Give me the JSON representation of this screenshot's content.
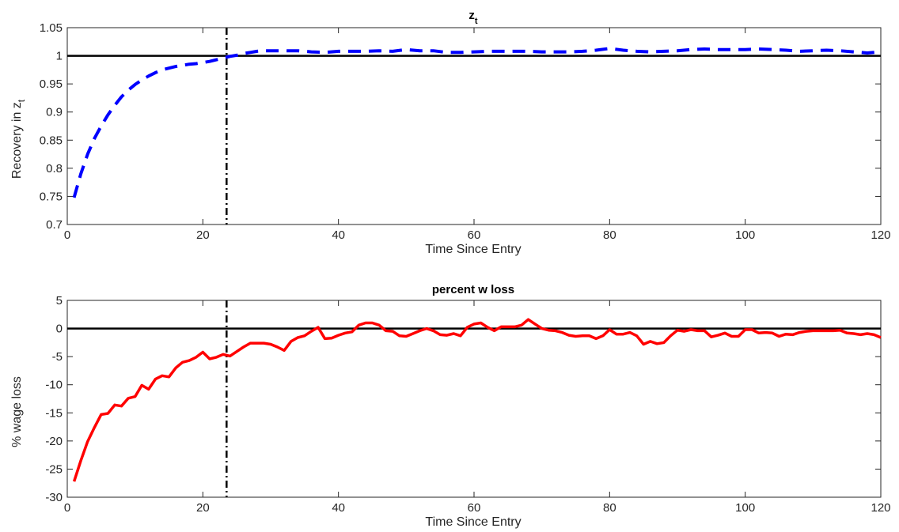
{
  "chart_data": [
    {
      "type": "line",
      "title": "z",
      "title_subscript": "t",
      "xlabel": "Time Since Entry",
      "ylabel": "Recovery in z",
      "ylabel_subscript": "t",
      "xlim": [
        0,
        120
      ],
      "ylim": [
        0.7,
        1.05
      ],
      "xticks": [
        0,
        20,
        40,
        60,
        80,
        100,
        120
      ],
      "yticks": [
        0.7,
        0.75,
        0.8,
        0.85,
        0.9,
        0.95,
        1,
        1.05
      ],
      "ytick_labels": [
        "0.7",
        "0.75",
        "0.8",
        "0.85",
        "0.9",
        "0.95",
        "1",
        "1.05"
      ],
      "grid": false,
      "reference_line_y": 1,
      "vertical_marker_x": 23.5,
      "series": [
        {
          "color": "#0000ff",
          "style": "dashed",
          "x": [
            1,
            2,
            3,
            4,
            5,
            6,
            7,
            8,
            9,
            10,
            11,
            12,
            13,
            14,
            15,
            16,
            17,
            18,
            19,
            20,
            21,
            22,
            23,
            24,
            25,
            26,
            27,
            28,
            29,
            30,
            32,
            34,
            36,
            38,
            40,
            42,
            44,
            46,
            48,
            50,
            52,
            54,
            56,
            58,
            60,
            62,
            64,
            66,
            68,
            70,
            72,
            74,
            76,
            78,
            80,
            82,
            84,
            86,
            88,
            90,
            92,
            94,
            96,
            98,
            100,
            102,
            104,
            106,
            108,
            110,
            112,
            114,
            116,
            118,
            120
          ],
          "values": [
            0.748,
            0.79,
            0.825,
            0.853,
            0.875,
            0.895,
            0.912,
            0.927,
            0.939,
            0.949,
            0.957,
            0.964,
            0.97,
            0.975,
            0.978,
            0.981,
            0.983,
            0.985,
            0.986,
            0.988,
            0.99,
            0.993,
            0.996,
            0.999,
            1.001,
            1.004,
            1.006,
            1.008,
            1.009,
            1.009,
            1.009,
            1.009,
            1.007,
            1.006,
            1.008,
            1.008,
            1.008,
            1.009,
            1.008,
            1.011,
            1.009,
            1.009,
            1.006,
            1.006,
            1.007,
            1.008,
            1.008,
            1.008,
            1.008,
            1.007,
            1.007,
            1.007,
            1.008,
            1.01,
            1.013,
            1.01,
            1.008,
            1.007,
            1.008,
            1.009,
            1.011,
            1.012,
            1.011,
            1.011,
            1.011,
            1.012,
            1.011,
            1.01,
            1.008,
            1.009,
            1.01,
            1.009,
            1.007,
            1.005,
            1.007
          ]
        }
      ]
    },
    {
      "type": "line",
      "title": "percent w loss",
      "xlabel": "Time Since Entry",
      "ylabel": "% wage loss",
      "xlim": [
        0,
        120
      ],
      "ylim": [
        -30,
        5
      ],
      "xticks": [
        0,
        20,
        40,
        60,
        80,
        100,
        120
      ],
      "yticks": [
        -30,
        -25,
        -20,
        -15,
        -10,
        -5,
        0,
        5
      ],
      "ytick_labels": [
        "-30",
        "-25",
        "-20",
        "-15",
        "-10",
        "-5",
        "0",
        "5"
      ],
      "grid": false,
      "reference_line_y": 0,
      "vertical_marker_x": 23.5,
      "series": [
        {
          "color": "#ff0000",
          "style": "solid",
          "x": [
            1,
            2,
            3,
            4,
            5,
            6,
            7,
            8,
            9,
            10,
            11,
            12,
            13,
            14,
            15,
            16,
            17,
            18,
            19,
            20,
            21,
            22,
            23,
            24,
            25,
            26,
            27,
            28,
            29,
            30,
            31,
            32,
            33,
            34,
            35,
            36,
            37,
            38,
            39,
            40,
            41,
            42,
            43,
            44,
            45,
            46,
            47,
            48,
            49,
            50,
            51,
            52,
            53,
            54,
            55,
            56,
            57,
            58,
            59,
            60,
            61,
            62,
            63,
            64,
            65,
            66,
            67,
            68,
            69,
            70,
            71,
            72,
            73,
            74,
            75,
            76,
            77,
            78,
            79,
            80,
            81,
            82,
            83,
            84,
            85,
            86,
            87,
            88,
            89,
            90,
            91,
            92,
            93,
            94,
            95,
            96,
            97,
            98,
            99,
            100,
            101,
            102,
            103,
            104,
            105,
            106,
            107,
            108,
            109,
            110,
            111,
            112,
            113,
            114,
            115,
            116,
            117,
            118,
            119,
            120
          ],
          "values": [
            -27.2,
            -23.5,
            -20.1,
            -17.6,
            -15.3,
            -15.1,
            -13.6,
            -13.8,
            -12.4,
            -12.1,
            -10.1,
            -10.8,
            -9.0,
            -8.4,
            -8.6,
            -7.0,
            -6.0,
            -5.7,
            -5.1,
            -4.2,
            -5.4,
            -5.1,
            -4.6,
            -4.9,
            -4.1,
            -3.3,
            -2.6,
            -2.6,
            -2.6,
            -2.8,
            -3.3,
            -3.9,
            -2.3,
            -1.6,
            -1.3,
            -0.5,
            0.2,
            -1.8,
            -1.7,
            -1.2,
            -0.8,
            -0.6,
            0.6,
            1.0,
            1.0,
            0.6,
            -0.4,
            -0.5,
            -1.3,
            -1.4,
            -0.9,
            -0.4,
            0.0,
            -0.4,
            -1.1,
            -1.2,
            -0.9,
            -1.3,
            0.2,
            0.8,
            1.0,
            0.2,
            -0.4,
            0.3,
            0.3,
            0.3,
            0.6,
            1.6,
            0.8,
            0.0,
            -0.3,
            -0.4,
            -0.7,
            -1.2,
            -1.4,
            -1.3,
            -1.3,
            -1.8,
            -1.3,
            -0.2,
            -1.0,
            -1.0,
            -0.7,
            -1.3,
            -2.8,
            -2.3,
            -2.7,
            -2.5,
            -1.3,
            -0.3,
            -0.5,
            -0.2,
            -0.4,
            -0.4,
            -1.5,
            -1.2,
            -0.8,
            -1.4,
            -1.4,
            -0.2,
            -0.2,
            -0.8,
            -0.7,
            -0.8,
            -1.4,
            -1.0,
            -1.1,
            -0.7,
            -0.5,
            -0.4,
            -0.4,
            -0.4,
            -0.4,
            -0.3,
            -0.8,
            -0.9,
            -1.1,
            -0.9,
            -1.1,
            -1.6
          ]
        }
      ]
    }
  ]
}
